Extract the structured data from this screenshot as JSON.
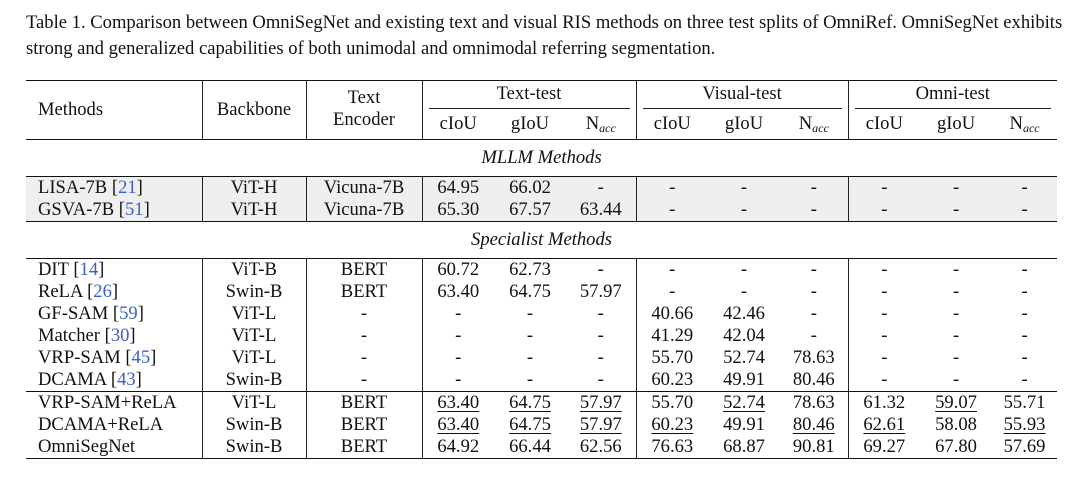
{
  "caption": "Table 1. Comparison between OmniSegNet and existing text and visual RIS methods on three test splits of OmniRef. OmniSegNet exhibits strong and generalized capabilities of both unimodal and omnimodal referring segmentation.",
  "header": {
    "methods": "Methods",
    "backbone": "Backbone",
    "text_encoder_line1": "Text",
    "text_encoder_line2": "Encoder",
    "groups": [
      "Text-test",
      "Visual-test",
      "Omni-test"
    ],
    "metric_ciou": "cIoU",
    "metric_giou": "gIoU",
    "metric_nacc_main": "N",
    "metric_nacc_sub": "acc"
  },
  "sections": [
    {
      "title": "MLLM Methods",
      "shaded": true,
      "rows": [
        {
          "name": "LISA-7B",
          "ref": "21",
          "backbone": "ViT-H",
          "encoder": "Vicuna-7B",
          "values": [
            "64.95",
            "66.02",
            "-",
            "-",
            "-",
            "-",
            "-",
            "-",
            "-"
          ],
          "underline": [],
          "bold": false
        },
        {
          "name": "GSVA-7B",
          "ref": "51",
          "backbone": "ViT-H",
          "encoder": "Vicuna-7B",
          "values": [
            "65.30",
            "67.57",
            "63.44",
            "-",
            "-",
            "-",
            "-",
            "-",
            "-"
          ],
          "underline": [],
          "bold": false
        }
      ]
    },
    {
      "title": "Specialist Methods",
      "shaded": false,
      "rows": [
        {
          "name": "DIT",
          "ref": "14",
          "backbone": "ViT-B",
          "encoder": "BERT",
          "values": [
            "60.72",
            "62.73",
            "-",
            "-",
            "-",
            "-",
            "-",
            "-",
            "-"
          ],
          "underline": [],
          "bold": false
        },
        {
          "name": "ReLA",
          "ref": "26",
          "backbone": "Swin-B",
          "encoder": "BERT",
          "values": [
            "63.40",
            "64.75",
            "57.97",
            "-",
            "-",
            "-",
            "-",
            "-",
            "-"
          ],
          "underline": [],
          "bold": false
        },
        {
          "name": "GF-SAM",
          "ref": "59",
          "backbone": "ViT-L",
          "encoder": "-",
          "values": [
            "-",
            "-",
            "-",
            "40.66",
            "42.46",
            "-",
            "-",
            "-",
            "-"
          ],
          "underline": [],
          "bold": false
        },
        {
          "name": "Matcher",
          "ref": "30",
          "backbone": "ViT-L",
          "encoder": "-",
          "values": [
            "-",
            "-",
            "-",
            "41.29",
            "42.04",
            "-",
            "-",
            "-",
            "-"
          ],
          "underline": [],
          "bold": false
        },
        {
          "name": "VRP-SAM",
          "ref": "45",
          "backbone": "ViT-L",
          "encoder": "-",
          "values": [
            "-",
            "-",
            "-",
            "55.70",
            "52.74",
            "78.63",
            "-",
            "-",
            "-"
          ],
          "underline": [],
          "bold": false
        },
        {
          "name": "DCAMA",
          "ref": "43",
          "backbone": "Swin-B",
          "encoder": "-",
          "values": [
            "-",
            "-",
            "-",
            "60.23",
            "49.91",
            "80.46",
            "-",
            "-",
            "-"
          ],
          "underline": [],
          "bold": false
        }
      ]
    },
    {
      "title": "",
      "shaded": false,
      "rows": [
        {
          "name": "VRP-SAM+ReLA",
          "ref": "",
          "backbone": "ViT-L",
          "encoder": "BERT",
          "values": [
            "63.40",
            "64.75",
            "57.97",
            "55.70",
            "52.74",
            "78.63",
            "61.32",
            "59.07",
            "55.71"
          ],
          "underline": [
            0,
            1,
            2,
            4,
            7
          ],
          "bold": false
        },
        {
          "name": "DCAMA+ReLA",
          "ref": "",
          "backbone": "Swin-B",
          "encoder": "BERT",
          "values": [
            "63.40",
            "64.75",
            "57.97",
            "60.23",
            "49.91",
            "80.46",
            "62.61",
            "58.08",
            "55.93"
          ],
          "underline": [
            0,
            1,
            2,
            3,
            5,
            6,
            8
          ],
          "bold": false
        },
        {
          "name": "OmniSegNet",
          "ref": "",
          "backbone": "Swin-B",
          "encoder": "BERT",
          "values": [
            "64.92",
            "66.44",
            "62.56",
            "76.63",
            "68.87",
            "90.81",
            "69.27",
            "67.80",
            "57.69"
          ],
          "underline": [],
          "bold": true
        }
      ]
    }
  ]
}
